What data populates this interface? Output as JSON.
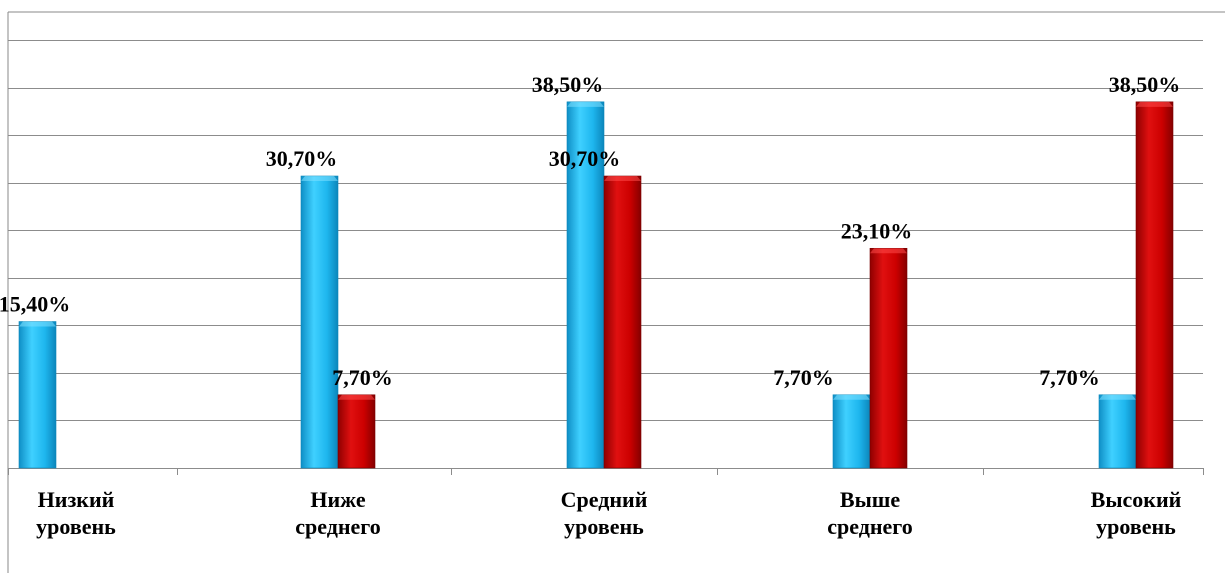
{
  "chart_data": {
    "type": "bar",
    "categories": [
      [
        "Низкий",
        "уровень"
      ],
      [
        "Ниже",
        "среднего"
      ],
      [
        "Средний",
        "уровень"
      ],
      [
        "Выше",
        "среднего"
      ],
      [
        "Высокий",
        "уровень"
      ]
    ],
    "series": [
      {
        "color": "#1EB6EE",
        "values": [
          15.4,
          30.7,
          38.5,
          7.7,
          7.7
        ],
        "labels": [
          "15,40%",
          "30,70%",
          "38,50%",
          "7,70%",
          "7,70%"
        ]
      },
      {
        "color": "#CC0000",
        "values": [
          null,
          7.7,
          30.7,
          23.1,
          38.5
        ],
        "labels": [
          "",
          "7,70%",
          "30,70%",
          "23,10%",
          "38,50%"
        ]
      }
    ],
    "ylim": [
      0,
      45
    ],
    "grid": true,
    "legend": "none"
  }
}
